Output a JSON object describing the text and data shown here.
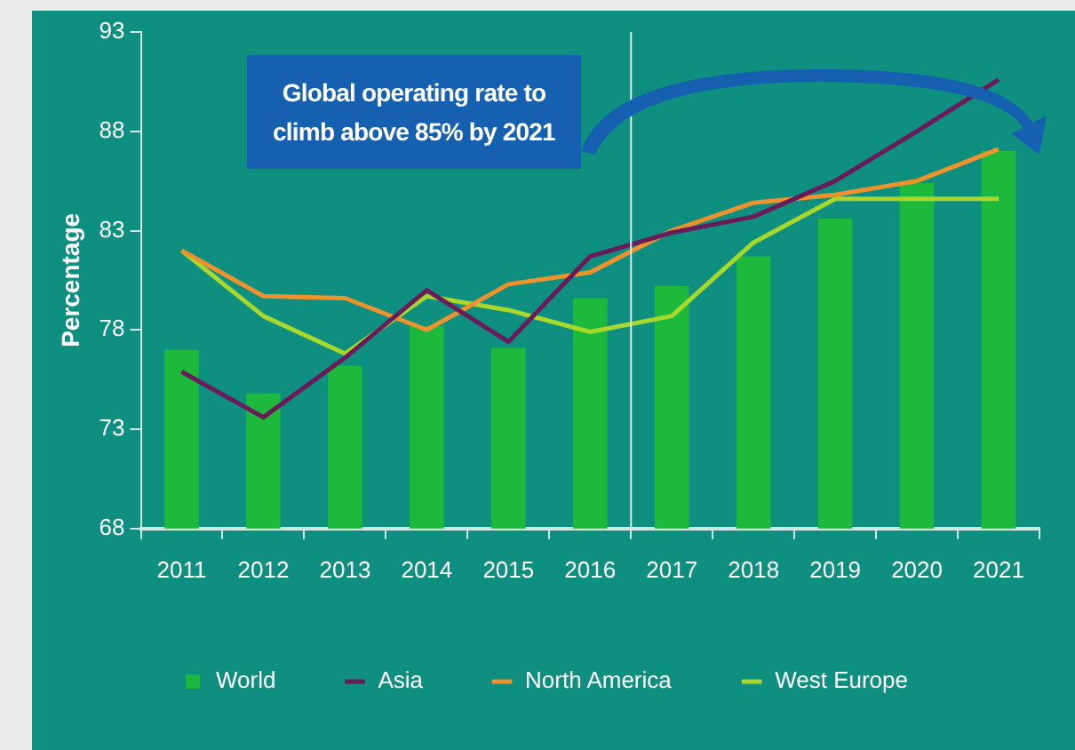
{
  "chart_data": {
    "type": "bar",
    "ylabel": "Percentage",
    "x": [
      2011,
      2012,
      2013,
      2014,
      2015,
      2016,
      2017,
      2018,
      2019,
      2020,
      2021
    ],
    "xlim": [
      2010.5,
      2021.5
    ],
    "xticks": [
      2011,
      2012,
      2013,
      2014,
      2015,
      2016,
      2017,
      2018,
      2019,
      2020,
      2021
    ],
    "ylim": [
      68,
      93
    ],
    "yticks": [
      68,
      73,
      78,
      83,
      88,
      93
    ],
    "grid": false,
    "legend": "bottom",
    "series": [
      {
        "name": "World",
        "color": "#1db93c",
        "values": [
          77.0,
          74.8,
          76.2,
          78.2,
          77.1,
          79.6,
          80.2,
          81.7,
          83.6,
          85.4,
          87.0
        ]
      },
      {
        "name": "Asia",
        "type": "line",
        "color": "#6b1a5a",
        "values": [
          75.9,
          73.6,
          76.6,
          80.0,
          77.4,
          81.7,
          82.9,
          83.7,
          85.5,
          88.0,
          90.6
        ]
      },
      {
        "name": "North America",
        "type": "line",
        "color": "#f0922b",
        "values": [
          82.0,
          79.7,
          79.6,
          78.0,
          80.3,
          80.9,
          83.0,
          84.4,
          84.8,
          85.5,
          87.1
        ]
      },
      {
        "name": "West Europe",
        "type": "line",
        "color": "#a8d82a",
        "values": [
          82.0,
          78.7,
          76.8,
          79.7,
          79.0,
          77.9,
          78.7,
          82.4,
          84.6,
          84.6,
          84.6
        ]
      }
    ],
    "ref_lines": [
      {
        "axis": "x",
        "value": 2016.5,
        "color": "#d8eeea"
      }
    ],
    "annotations": [
      "Global operating rate to climb above 85% by 2021"
    ]
  }
}
